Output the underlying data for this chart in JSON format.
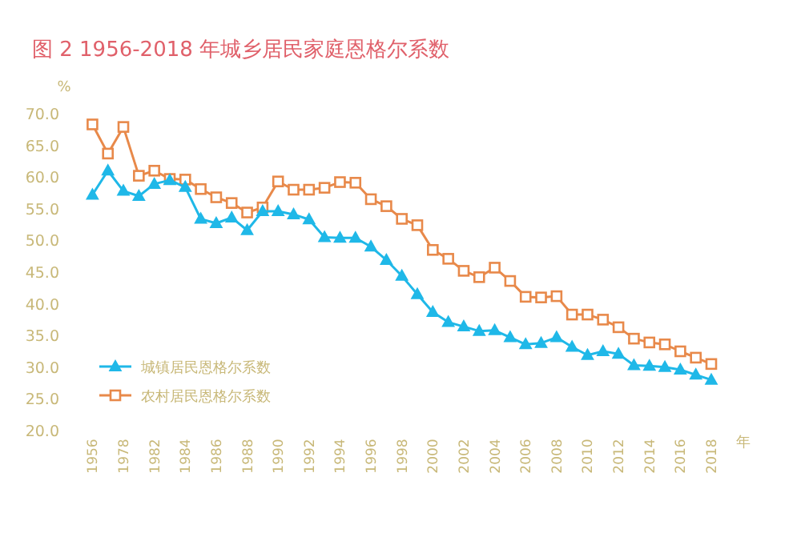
{
  "chart_data": {
    "type": "line",
    "title": "图 2  1956-2018 年城乡居民家庭恩格尔系数",
    "ylabel": "%",
    "xlabel": "年",
    "categories": [
      "1956",
      null,
      "1978",
      null,
      "1982",
      null,
      "1984",
      null,
      "1986",
      null,
      "1988",
      null,
      "1990",
      null,
      "1992",
      null,
      "1994",
      null,
      "1996",
      null,
      "1998",
      null,
      "2000",
      null,
      "2002",
      null,
      "2004",
      null,
      "2006",
      null,
      "2008",
      null,
      "2010",
      null,
      "2012",
      null,
      "2014",
      null,
      "2016",
      null,
      "2018"
    ],
    "series": [
      {
        "name": "城镇居民恩格尔系数",
        "color": "#1fb8e8",
        "marker": "triangle",
        "values": [
          57.2,
          61.0,
          57.8,
          57.0,
          58.9,
          59.5,
          58.4,
          53.4,
          52.7,
          53.6,
          51.6,
          54.6,
          54.6,
          54.1,
          53.3,
          50.5,
          50.4,
          50.4,
          49.0,
          46.9,
          44.4,
          41.5,
          38.7,
          37.1,
          36.4,
          35.7,
          35.8,
          34.7,
          33.6,
          33.8,
          34.7,
          33.2,
          31.9,
          32.5,
          32.1,
          30.3,
          30.2,
          30.0,
          29.6,
          28.8,
          28.0
        ]
      },
      {
        "name": "农村居民恩格尔系数",
        "color": "#e8894a",
        "marker": "square",
        "values": [
          68.3,
          63.7,
          67.9,
          60.2,
          61.0,
          59.7,
          59.6,
          58.1,
          56.8,
          55.9,
          54.4,
          55.2,
          59.3,
          58.0,
          58.0,
          58.3,
          59.2,
          59.1,
          56.5,
          55.4,
          53.4,
          52.4,
          48.5,
          47.1,
          45.2,
          44.2,
          45.7,
          43.6,
          41.1,
          41.0,
          41.2,
          38.3,
          38.3,
          37.5,
          36.3,
          34.5,
          33.9,
          33.6,
          32.5,
          31.5,
          30.5
        ]
      }
    ],
    "ylim": [
      20,
      70
    ],
    "yticks": [
      {
        "value": 20,
        "label": "20.0"
      },
      {
        "value": 25,
        "label": "25.0"
      },
      {
        "value": 30,
        "label": "30.0"
      },
      {
        "value": 35,
        "label": "35.0"
      },
      {
        "value": 40,
        "label": "40.0"
      },
      {
        "value": 45,
        "label": "45.0"
      },
      {
        "value": 50,
        "label": "50.0"
      },
      {
        "value": 55,
        "label": "55.0"
      },
      {
        "value": 60,
        "label": "60.0"
      },
      {
        "value": 65,
        "label": "65.0"
      },
      {
        "value": 70,
        "label": "70.0"
      }
    ],
    "grid": false,
    "legend": "bottom left",
    "line_style": "solid"
  }
}
